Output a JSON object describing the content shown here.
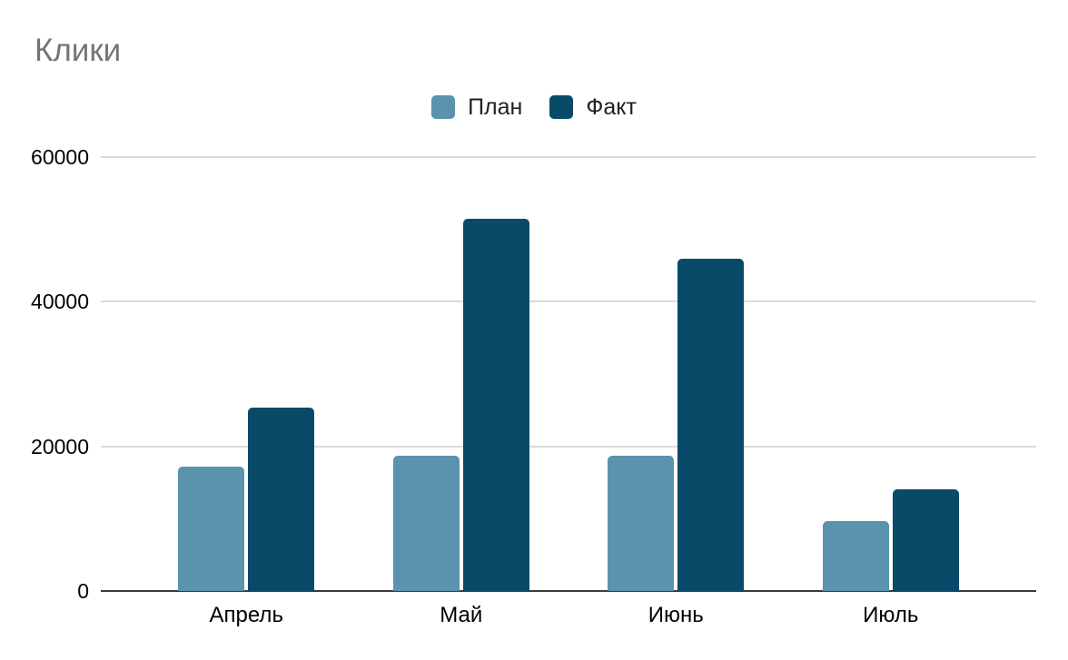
{
  "chart_data": {
    "type": "bar",
    "title": "Клики",
    "categories": [
      "Апрель",
      "Май",
      "Июнь",
      "Июль"
    ],
    "series": [
      {
        "name": "План",
        "color": "#5b92ae",
        "values": [
          17200,
          18700,
          18700,
          9700
        ]
      },
      {
        "name": "Факт",
        "color": "#084a68",
        "values": [
          25400,
          51500,
          46000,
          14100
        ]
      }
    ],
    "xlabel": "",
    "ylabel": "",
    "ylim": [
      0,
      60000
    ],
    "yticks": [
      0,
      20000,
      40000,
      60000
    ],
    "grid": true,
    "legend_position": "top"
  },
  "colors": {
    "title_text": "#757575",
    "axis_text": "#000000",
    "gridline": "#dadada",
    "baseline": "#3c3c3c",
    "background": "#ffffff"
  }
}
